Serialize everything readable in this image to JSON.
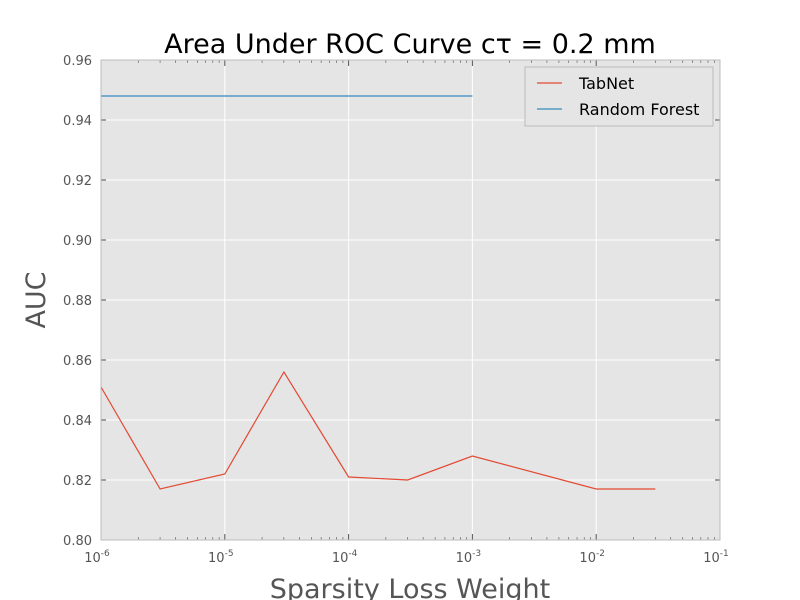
{
  "chart_data": {
    "type": "line",
    "title": "Area Under ROC Curve cτ = 0.2 mm",
    "xlabel": "Sparsity Loss Weight",
    "ylabel": "AUC",
    "xscale": "log",
    "xlim": [
      1e-06,
      0.1
    ],
    "ylim": [
      0.8,
      0.96
    ],
    "grid": true,
    "legend_position": "top-right",
    "x_ticks": [
      {
        "base": "10",
        "exp": "-6",
        "value": 1e-06
      },
      {
        "base": "10",
        "exp": "-5",
        "value": 1e-05
      },
      {
        "base": "10",
        "exp": "-4",
        "value": 0.0001
      },
      {
        "base": "10",
        "exp": "-3",
        "value": 0.001
      },
      {
        "base": "10",
        "exp": "-2",
        "value": 0.01
      },
      {
        "base": "10",
        "exp": "-1",
        "value": 0.1
      }
    ],
    "y_ticks": [
      "0.80",
      "0.82",
      "0.84",
      "0.86",
      "0.88",
      "0.90",
      "0.92",
      "0.94",
      "0.96"
    ],
    "series": [
      {
        "name": "TabNet",
        "color": "#e24a33",
        "x": [
          1e-06,
          3e-06,
          1e-05,
          3e-05,
          0.0001,
          0.0003,
          0.001,
          0.01,
          0.03
        ],
        "y": [
          0.851,
          0.817,
          0.822,
          0.856,
          0.821,
          0.82,
          0.828,
          0.817,
          0.817
        ]
      },
      {
        "name": "Random Forest",
        "color": "#348abd",
        "x": [
          1e-06,
          0.001
        ],
        "y": [
          0.948,
          0.948
        ]
      }
    ]
  },
  "style": {
    "plot_background": "#e5e5e5",
    "grid_color": "#ffffff"
  }
}
